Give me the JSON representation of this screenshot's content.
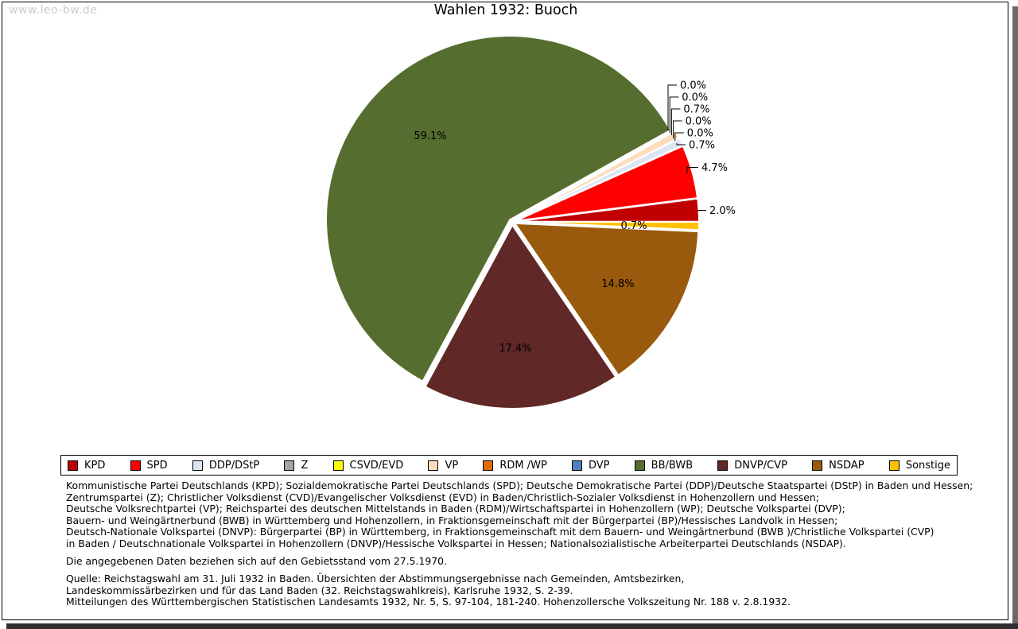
{
  "watermark": "www.leo-bw.de",
  "title": "Wahlen 1932: Buoch",
  "chart_data": {
    "type": "pie",
    "title": "Wahlen 1932: Buoch",
    "start_angle_deg": 0,
    "direction": "counterclockwise",
    "legend_position": "bottom",
    "slices": [
      {
        "label": "KPD",
        "value": 2.0,
        "pct_label": "2.0%",
        "color": "#C00000"
      },
      {
        "label": "SPD",
        "value": 4.7,
        "pct_label": "4.7%",
        "color": "#FF0000"
      },
      {
        "label": "DDP/DStP",
        "value": 0.7,
        "pct_label": "0.7%",
        "color": "#DCE6F2"
      },
      {
        "label": "Z",
        "value": 0.0,
        "pct_label": "0.0%",
        "color": "#A6A6A6"
      },
      {
        "label": "CSVD/EVD",
        "value": 0.0,
        "pct_label": "0.0%",
        "color": "#FFFF00"
      },
      {
        "label": "VP",
        "value": 0.7,
        "pct_label": "0.7%",
        "color": "#FBDCBB"
      },
      {
        "label": "RDM /WP",
        "value": 0.0,
        "pct_label": "0.0%",
        "color": "#E36C0A"
      },
      {
        "label": "DVP",
        "value": 0.0,
        "pct_label": "0.0%",
        "color": "#4F81BD"
      },
      {
        "label": "BB/BWB",
        "value": 59.1,
        "pct_label": "59.1%",
        "color": "#556E2F"
      },
      {
        "label": "DNVP/CVP",
        "value": 17.4,
        "pct_label": "17.4%",
        "color": "#602827"
      },
      {
        "label": "NSDAP",
        "value": 14.8,
        "pct_label": "14.8%",
        "color": "#9A5A0D"
      },
      {
        "label": "Sonstige",
        "value": 0.7,
        "pct_label": "0.7%",
        "color": "#FFC000"
      }
    ]
  },
  "notes": {
    "parties": [
      "Kommunistische Partei Deutschlands (KPD); Sozialdemokratische Partei Deutschlands (SPD); Deutsche Demokratische Partei (DDP)/Deutsche Staatspartei (DStP) in Baden und Hessen;",
      "Zentrumspartei (Z); Christlicher Volksdienst (CVD)/Evangelischer Volksdienst (EVD) in Baden/Christlich-Sozialer Volksdienst in Hohenzollern und Hessen;",
      "Deutsche Volksrechtpartei (VP); Reichspartei des deutschen Mittelstands in Baden (RDM)/Wirtschaftspartei in Hohenzollern (WP); Deutsche Volkspartei (DVP);",
      "Bauern- und Weingärtnerbund (BWB) in Württemberg und Hohenzollern, in Fraktionsgemeinschaft mit der Bürgerpartei (BP)/Hessisches Landvolk in Hessen;",
      "Deutsch-Nationale Volkspartei (DNVP): Bürgerpartei (BP) in Württemberg, in Fraktionsgemeinschaft mit dem Bauern- und Weingärtnerbund (BWB )/Christliche Volkspartei (CVP)",
      "in Baden / Deutschnationale Volkspartei in Hohenzollern (DNVP)/Hessische Volkspartei in Hessen; Nationalsozialistische Arbeiterpartei Deutschlands (NSDAP)."
    ],
    "gebietsstand": "Die angegebenen Daten beziehen sich auf den Gebietsstand vom 27.5.1970.",
    "quelle": [
      "Quelle: Reichstagswahl am 31. Juli 1932 in Baden. Übersichten der Abstimmungsergebnisse nach Gemeinden, Amtsbezirken,",
      "Landeskommissärbezirken und für das Land Baden (32. Reichstagswahlkreis), Karlsruhe 1932, S. 2-39.",
      "Mitteilungen des Württembergischen Statistischen Landesamts 1932, Nr. 5, S. 97-104, 181-240. Hohenzollersche Volkszeitung Nr. 188 v. 2.8.1932."
    ]
  }
}
